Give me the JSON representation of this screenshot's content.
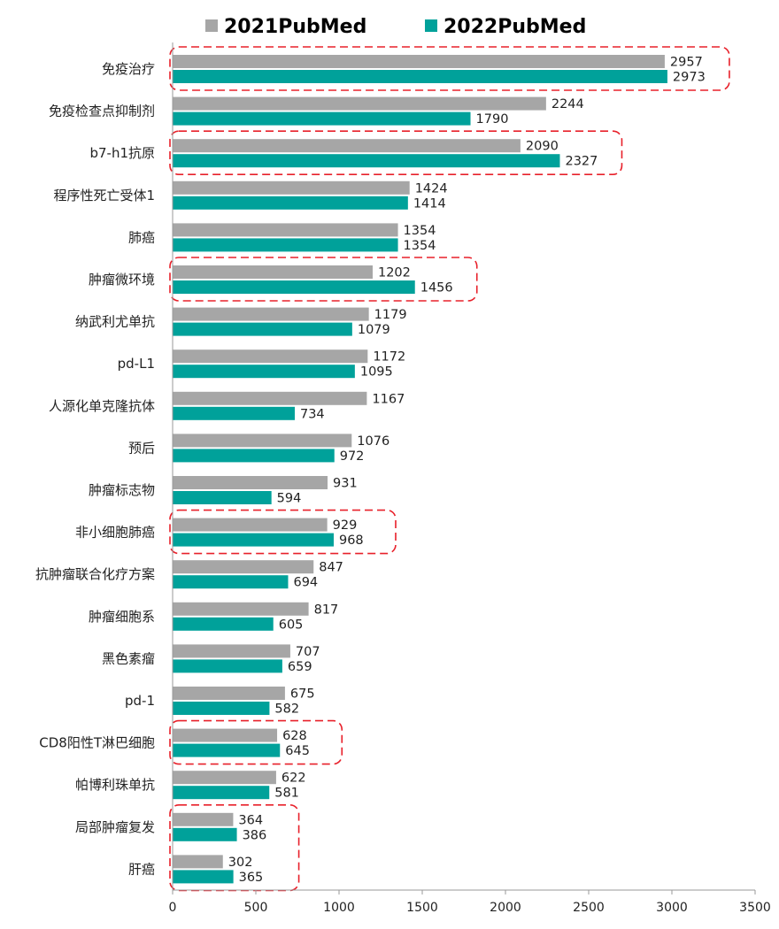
{
  "chart_data": {
    "type": "bar",
    "orientation": "horizontal",
    "categories": [
      "免疫治疗",
      "免疫检查点抑制剂",
      "b7-h1抗原",
      "程序性死亡受体1",
      "肺癌",
      "肿瘤微环境",
      "纳武利尤单抗",
      "pd-L1",
      "人源化单克隆抗体",
      "预后",
      "肿瘤标志物",
      "非小细胞肺癌",
      "抗肿瘤联合化疗方案",
      "肿瘤细胞系",
      "黑色素瘤",
      "pd-1",
      "CD8阳性T淋巴细胞",
      "帕博利珠单抗",
      "局部肿瘤复发",
      "肝癌"
    ],
    "series": [
      {
        "name": "2021PubMed",
        "color": "#a6a6a6",
        "values": [
          2957,
          2244,
          2090,
          1424,
          1354,
          1202,
          1179,
          1172,
          1167,
          1076,
          931,
          929,
          847,
          817,
          707,
          675,
          628,
          622,
          364,
          302
        ]
      },
      {
        "name": "2022PubMed",
        "color": "#00a19a",
        "values": [
          2973,
          1790,
          2327,
          1414,
          1354,
          1456,
          1079,
          1095,
          734,
          972,
          594,
          968,
          694,
          605,
          659,
          582,
          645,
          581,
          386,
          365
        ]
      }
    ],
    "xlim": [
      0,
      3500
    ],
    "xticks": [
      0,
      500,
      1000,
      1500,
      2000,
      2500,
      3000,
      3500
    ],
    "legend_position": "top-center",
    "grid": false,
    "highlighted_groups": [
      [
        0
      ],
      [
        2
      ],
      [
        5
      ],
      [
        11
      ],
      [
        16
      ],
      [
        18,
        19
      ]
    ],
    "highlight_color": "#e8202a"
  }
}
